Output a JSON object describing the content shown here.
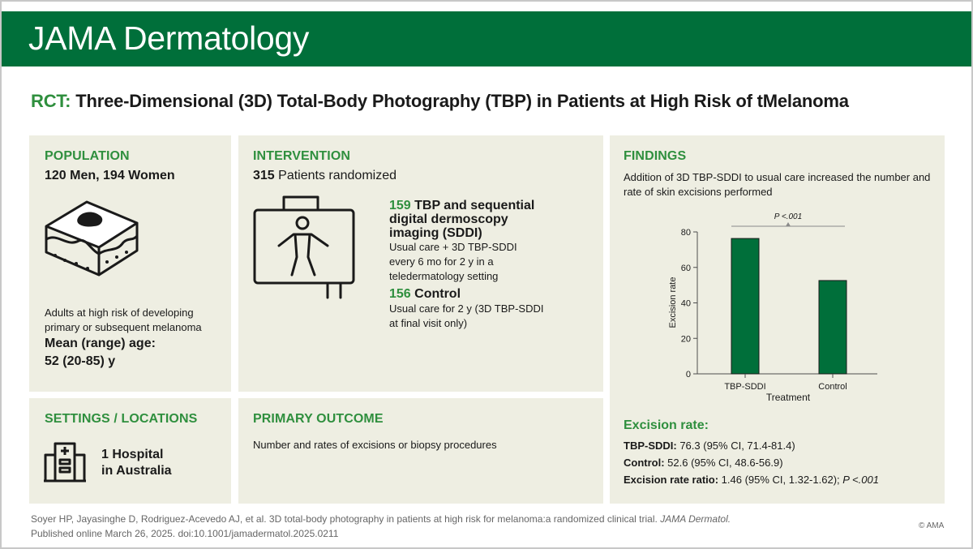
{
  "journal": "JAMA Dermatology",
  "title": {
    "prefix": "RCT:",
    "text": " Three-Dimensional (3D) Total-Body Photography (TBP) in Patients at High Risk of tMelanoma"
  },
  "population": {
    "heading": "POPULATION",
    "counts": "120 Men, 194 Women",
    "icon": "skin-lesion-icon",
    "description_line1": "Adults at high risk of developing",
    "description_line2": "primary or subsequent melanoma",
    "age_label": "Mean (range) age:",
    "age_value": "52 (20-85) y"
  },
  "intervention": {
    "heading": "INTERVENTION",
    "randomized_count": "315",
    "randomized_label": " Patients randomized",
    "icon": "full-body-scan-icon",
    "arm1_count": "159",
    "arm1_title_line1": " TBP and sequential",
    "arm1_title_line2": "digital dermoscopy",
    "arm1_title_line3": "imaging (SDDI)",
    "arm1_desc_line1": "Usual care + 3D TBP-SDDI",
    "arm1_desc_line2": "every 6 mo for 2 y in a",
    "arm1_desc_line3": "teledermatology setting",
    "arm2_count": "156",
    "arm2_title": " Control",
    "arm2_desc_line1": "Usual care for 2 y (3D TBP-SDDI",
    "arm2_desc_line2": "at final visit only)"
  },
  "settings": {
    "heading": "SETTINGS / LOCATIONS",
    "icon": "hospital-building-icon",
    "line1": "1 Hospital",
    "line2": "in Australia"
  },
  "primary_outcome": {
    "heading": "PRIMARY OUTCOME",
    "text": "Number and rates of excisions or biopsy procedures"
  },
  "findings": {
    "heading": "FINDINGS",
    "desc_line1": "Addition of 3D TBP-SDDI to usual care increased the number and",
    "desc_line2": "rate of skin excisions performed",
    "p_value": "P <.001",
    "excision_heading": "Excision rate:",
    "result1_label": "TBP-SDDI:",
    "result1_value": " 76.3 (95% CI, 71.4-81.4)",
    "result2_label": "Control:",
    "result2_value": " 52.6 (95% CI, 48.6-56.9)",
    "result3_label": "Excision rate ratio:",
    "result3_value": " 1.46 (95% CI, 1.32-1.62); ",
    "result3_p": "P <.001"
  },
  "chart_data": {
    "type": "bar",
    "categories": [
      "TBP-SDDI",
      "Control"
    ],
    "values": [
      76.3,
      52.6
    ],
    "xlabel": "Treatment",
    "ylabel": "Excision rate",
    "ylim": [
      0,
      80
    ],
    "yticks": [
      "0",
      "20",
      "40",
      "60",
      "80"
    ],
    "bar_color": "#006f3a",
    "annotation": "P <.001",
    "grid": false
  },
  "citation": {
    "line1_prefix": "Soyer HP, Jayasinghe D, Rodriguez-Acevedo AJ, et al. 3D total-body photography in patients at high risk for melanoma:a randomized clinical trial. ",
    "line1_journal": "JAMA Dermatol.",
    "line2": "Published online March 26, 2025. doi:10.1001/jamadermatol.2025.0211"
  },
  "copyright": "© AMA",
  "colors": {
    "brand_green": "#006f3a",
    "accent_green": "#2f8f3e",
    "panel_bg": "#eeeee2"
  }
}
